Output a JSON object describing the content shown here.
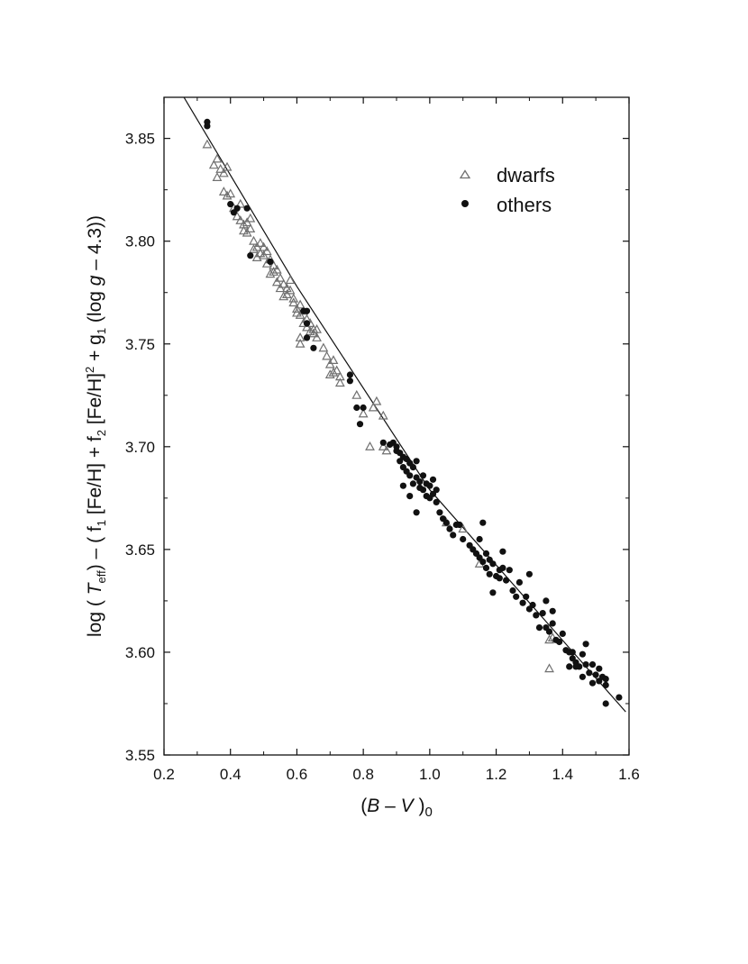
{
  "chart_data": {
    "type": "scatter",
    "title": "",
    "xlabel": "(B – V )0",
    "xlabel_parts": {
      "open": "(",
      "b": "B",
      "dash": " – ",
      "v": "V",
      "close": " )",
      "sub": "0"
    },
    "ylabel": "log ( Teff)  –  ( f1 [Fe/H] + f2 [Fe/H]2 + g1 (log g – 4.3))",
    "ylabel_parts": {
      "a": "log ( ",
      "t": "T",
      "eff": "eff",
      "b": ")  –  ( f",
      "s1": "1",
      "c": " [Fe/H] + f",
      "s2": "2",
      "d": " [Fe/H]",
      "sup2": "2",
      "e": " + g",
      "s3": "1",
      "f": " (log ",
      "g": "g",
      "h": " – 4.3))"
    },
    "xlim": [
      0.2,
      1.6
    ],
    "ylim": [
      3.55,
      3.87
    ],
    "x_ticks": [
      "0.2",
      "0.4",
      "0.6",
      "0.8",
      "1.0",
      "1.2",
      "1.4",
      "1.6"
    ],
    "y_ticks": [
      "3.55",
      "3.60",
      "3.65",
      "3.70",
      "3.75",
      "3.80",
      "3.85"
    ],
    "grid": false,
    "legend_position": "top-right",
    "colors": {
      "dwarfs": "#707070",
      "others": "#111111",
      "fit": "#111111"
    },
    "series": [
      {
        "name": "dwarfs",
        "marker": "open-triangle",
        "points": [
          [
            0.33,
            3.847
          ],
          [
            0.35,
            3.837
          ],
          [
            0.36,
            3.84
          ],
          [
            0.36,
            3.831
          ],
          [
            0.37,
            3.835
          ],
          [
            0.38,
            3.833
          ],
          [
            0.39,
            3.836
          ],
          [
            0.38,
            3.824
          ],
          [
            0.39,
            3.822
          ],
          [
            0.4,
            3.823
          ],
          [
            0.41,
            3.816
          ],
          [
            0.42,
            3.812
          ],
          [
            0.43,
            3.818
          ],
          [
            0.43,
            3.81
          ],
          [
            0.44,
            3.805
          ],
          [
            0.44,
            3.808
          ],
          [
            0.45,
            3.804
          ],
          [
            0.45,
            3.809
          ],
          [
            0.46,
            3.811
          ],
          [
            0.46,
            3.806
          ],
          [
            0.47,
            3.8
          ],
          [
            0.47,
            3.796
          ],
          [
            0.48,
            3.797
          ],
          [
            0.48,
            3.792
          ],
          [
            0.49,
            3.799
          ],
          [
            0.49,
            3.794
          ],
          [
            0.5,
            3.793
          ],
          [
            0.5,
            3.797
          ],
          [
            0.51,
            3.795
          ],
          [
            0.51,
            3.789
          ],
          [
            0.52,
            3.791
          ],
          [
            0.52,
            3.784
          ],
          [
            0.53,
            3.788
          ],
          [
            0.53,
            3.785
          ],
          [
            0.54,
            3.786
          ],
          [
            0.54,
            3.78
          ],
          [
            0.55,
            3.782
          ],
          [
            0.55,
            3.777
          ],
          [
            0.56,
            3.779
          ],
          [
            0.56,
            3.773
          ],
          [
            0.57,
            3.777
          ],
          [
            0.57,
            3.774
          ],
          [
            0.58,
            3.781
          ],
          [
            0.58,
            3.776
          ],
          [
            0.59,
            3.772
          ],
          [
            0.59,
            3.77
          ],
          [
            0.6,
            3.767
          ],
          [
            0.6,
            3.765
          ],
          [
            0.61,
            3.769
          ],
          [
            0.61,
            3.764
          ],
          [
            0.62,
            3.766
          ],
          [
            0.62,
            3.76
          ],
          [
            0.63,
            3.762
          ],
          [
            0.63,
            3.758
          ],
          [
            0.64,
            3.76
          ],
          [
            0.64,
            3.756
          ],
          [
            0.65,
            3.757
          ],
          [
            0.65,
            3.755
          ],
          [
            0.66,
            3.757
          ],
          [
            0.66,
            3.753
          ],
          [
            0.61,
            3.753
          ],
          [
            0.61,
            3.75
          ],
          [
            0.68,
            3.748
          ],
          [
            0.69,
            3.744
          ],
          [
            0.7,
            3.74
          ],
          [
            0.71,
            3.742
          ],
          [
            0.71,
            3.736
          ],
          [
            0.72,
            3.737
          ],
          [
            0.73,
            3.734
          ],
          [
            0.73,
            3.731
          ],
          [
            0.7,
            3.735
          ],
          [
            0.78,
            3.725
          ],
          [
            0.8,
            3.716
          ],
          [
            0.83,
            3.719
          ],
          [
            0.84,
            3.722
          ],
          [
            0.86,
            3.715
          ],
          [
            0.86,
            3.7
          ],
          [
            0.87,
            3.698
          ],
          [
            0.82,
            3.7
          ],
          [
            1.05,
            3.663
          ],
          [
            1.1,
            3.66
          ],
          [
            1.15,
            3.643
          ],
          [
            1.36,
            3.606
          ],
          [
            1.37,
            3.607
          ],
          [
            1.36,
            3.592
          ]
        ]
      },
      {
        "name": "others",
        "marker": "filled-circle",
        "points": [
          [
            0.33,
            3.858
          ],
          [
            0.33,
            3.856
          ],
          [
            0.4,
            3.818
          ],
          [
            0.42,
            3.816
          ],
          [
            0.45,
            3.816
          ],
          [
            0.41,
            3.814
          ],
          [
            0.46,
            3.793
          ],
          [
            0.52,
            3.79
          ],
          [
            0.62,
            3.766
          ],
          [
            0.63,
            3.766
          ],
          [
            0.63,
            3.76
          ],
          [
            0.63,
            3.753
          ],
          [
            0.65,
            3.748
          ],
          [
            0.76,
            3.735
          ],
          [
            0.76,
            3.732
          ],
          [
            0.78,
            3.719
          ],
          [
            0.8,
            3.719
          ],
          [
            0.79,
            3.711
          ],
          [
            0.86,
            3.702
          ],
          [
            0.88,
            3.701
          ],
          [
            0.89,
            3.702
          ],
          [
            0.9,
            3.7
          ],
          [
            0.9,
            3.698
          ],
          [
            0.91,
            3.697
          ],
          [
            0.91,
            3.693
          ],
          [
            0.92,
            3.695
          ],
          [
            0.92,
            3.69
          ],
          [
            0.93,
            3.694
          ],
          [
            0.93,
            3.688
          ],
          [
            0.94,
            3.692
          ],
          [
            0.94,
            3.686
          ],
          [
            0.95,
            3.69
          ],
          [
            0.95,
            3.682
          ],
          [
            0.96,
            3.693
          ],
          [
            0.96,
            3.685
          ],
          [
            0.97,
            3.683
          ],
          [
            0.97,
            3.68
          ],
          [
            0.98,
            3.686
          ],
          [
            0.98,
            3.679
          ],
          [
            0.99,
            3.682
          ],
          [
            0.99,
            3.676
          ],
          [
            1.0,
            3.681
          ],
          [
            1.0,
            3.675
          ],
          [
            1.01,
            3.684
          ],
          [
            1.01,
            3.677
          ],
          [
            1.02,
            3.673
          ],
          [
            1.02,
            3.679
          ],
          [
            0.96,
            3.668
          ],
          [
            0.92,
            3.681
          ],
          [
            0.94,
            3.676
          ],
          [
            1.03,
            3.668
          ],
          [
            1.04,
            3.665
          ],
          [
            1.05,
            3.663
          ],
          [
            1.06,
            3.66
          ],
          [
            1.07,
            3.657
          ],
          [
            1.08,
            3.662
          ],
          [
            1.09,
            3.662
          ],
          [
            1.1,
            3.655
          ],
          [
            1.12,
            3.652
          ],
          [
            1.13,
            3.65
          ],
          [
            1.14,
            3.648
          ],
          [
            1.15,
            3.646
          ],
          [
            1.15,
            3.655
          ],
          [
            1.16,
            3.663
          ],
          [
            1.16,
            3.644
          ],
          [
            1.17,
            3.641
          ],
          [
            1.17,
            3.648
          ],
          [
            1.18,
            3.645
          ],
          [
            1.18,
            3.638
          ],
          [
            1.19,
            3.643
          ],
          [
            1.19,
            3.629
          ],
          [
            1.2,
            3.637
          ],
          [
            1.21,
            3.64
          ],
          [
            1.21,
            3.636
          ],
          [
            1.22,
            3.649
          ],
          [
            1.22,
            3.641
          ],
          [
            1.23,
            3.635
          ],
          [
            1.24,
            3.64
          ],
          [
            1.25,
            3.63
          ],
          [
            1.26,
            3.627
          ],
          [
            1.27,
            3.634
          ],
          [
            1.28,
            3.624
          ],
          [
            1.29,
            3.627
          ],
          [
            1.3,
            3.621
          ],
          [
            1.3,
            3.638
          ],
          [
            1.31,
            3.623
          ],
          [
            1.32,
            3.618
          ],
          [
            1.33,
            3.612
          ],
          [
            1.34,
            3.619
          ],
          [
            1.35,
            3.625
          ],
          [
            1.35,
            3.612
          ],
          [
            1.36,
            3.61
          ],
          [
            1.37,
            3.614
          ],
          [
            1.37,
            3.62
          ],
          [
            1.38,
            3.606
          ],
          [
            1.39,
            3.605
          ],
          [
            1.4,
            3.609
          ],
          [
            1.41,
            3.601
          ],
          [
            1.42,
            3.6
          ],
          [
            1.42,
            3.593
          ],
          [
            1.43,
            3.597
          ],
          [
            1.44,
            3.595
          ],
          [
            1.45,
            3.593
          ],
          [
            1.46,
            3.599
          ],
          [
            1.46,
            3.588
          ],
          [
            1.47,
            3.594
          ],
          [
            1.47,
            3.604
          ],
          [
            1.48,
            3.59
          ],
          [
            1.49,
            3.585
          ],
          [
            1.49,
            3.594
          ],
          [
            1.5,
            3.589
          ],
          [
            1.51,
            3.592
          ],
          [
            1.51,
            3.586
          ],
          [
            1.52,
            3.588
          ],
          [
            1.53,
            3.587
          ],
          [
            1.53,
            3.584
          ],
          [
            1.53,
            3.575
          ],
          [
            1.57,
            3.578
          ],
          [
            1.44,
            3.593
          ],
          [
            1.43,
            3.6
          ]
        ]
      },
      {
        "name": "",
        "type": "line",
        "points": [
          [
            0.26,
            3.87
          ],
          [
            0.6,
            3.778
          ],
          [
            1.0,
            3.679
          ],
          [
            1.59,
            3.571
          ]
        ]
      }
    ]
  },
  "legend": {
    "dwarfs_label": "dwarfs",
    "others_label": "others"
  }
}
